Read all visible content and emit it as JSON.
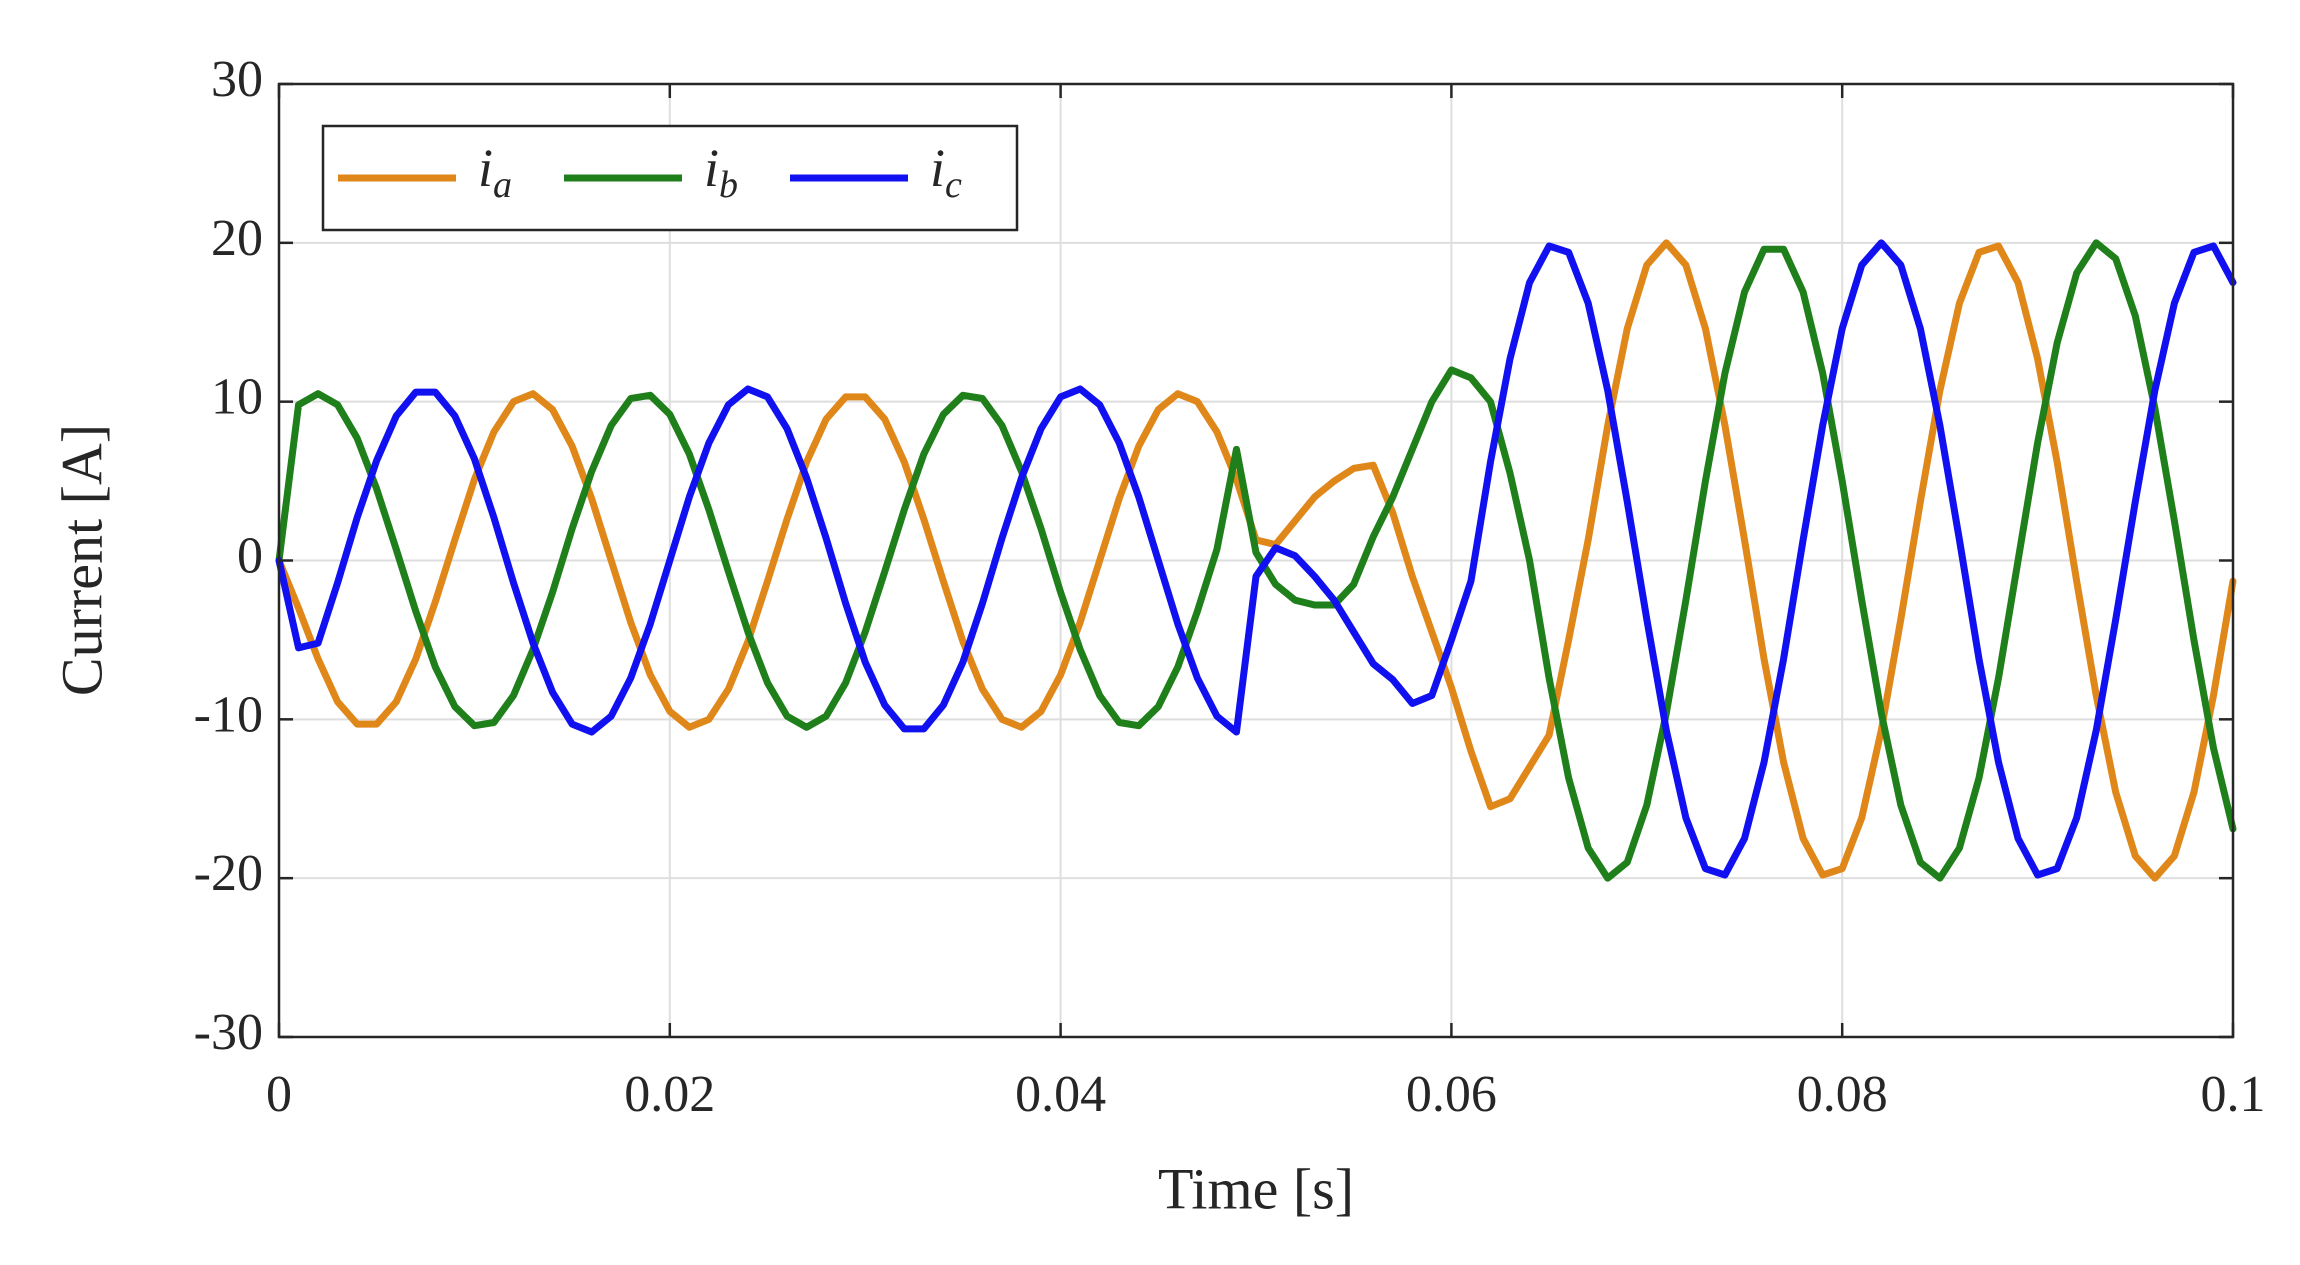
{
  "chart_data": {
    "type": "line",
    "xlabel": "Time [s]",
    "ylabel": "Current [A]",
    "xlim": [
      0,
      0.1
    ],
    "ylim": [
      -30,
      30
    ],
    "xticks": [
      0,
      0.02,
      0.04,
      0.06,
      0.08,
      0.1
    ],
    "yticks": [
      -30,
      -20,
      -10,
      0,
      10,
      20,
      30
    ],
    "grid": true,
    "legend": "upper left",
    "legend_orientation": "horizontal",
    "x": [
      0,
      0.001,
      0.002,
      0.003,
      0.004,
      0.005,
      0.006,
      0.007,
      0.008,
      0.009,
      0.01,
      0.011,
      0.012,
      0.013,
      0.014,
      0.015,
      0.016,
      0.017,
      0.018,
      0.019,
      0.02,
      0.021,
      0.022,
      0.023,
      0.024,
      0.025,
      0.026,
      0.027,
      0.028,
      0.029,
      0.03,
      0.031,
      0.032,
      0.033,
      0.034,
      0.035,
      0.036,
      0.037,
      0.038,
      0.039,
      0.04,
      0.041,
      0.042,
      0.043,
      0.044,
      0.045,
      0.046,
      0.047,
      0.048,
      0.049,
      0.05,
      0.051,
      0.052,
      0.053,
      0.054,
      0.055,
      0.056,
      0.057,
      0.058,
      0.059,
      0.06,
      0.061,
      0.062,
      0.063,
      0.064,
      0.065,
      0.066,
      0.067,
      0.068,
      0.069,
      0.07,
      0.071,
      0.072,
      0.073,
      0.074,
      0.075,
      0.076,
      0.077,
      0.078,
      0.079,
      0.08,
      0.081,
      0.082,
      0.083,
      0.084,
      0.085,
      0.086,
      0.087,
      0.088,
      0.089,
      0.09,
      0.091,
      0.092,
      0.093,
      0.094,
      0.095,
      0.096,
      0.097,
      0.098,
      0.099,
      0.1
    ],
    "series": [
      {
        "name": "ia",
        "color": "#e0871a",
        "values": [
          0,
          -3,
          -6.2,
          -8.9,
          -10.3,
          -10.3,
          -8.9,
          -6.2,
          -2.6,
          1.3,
          5.1,
          8.1,
          10.0,
          10.5,
          9.5,
          7.2,
          3.9,
          0,
          -3.9,
          -7.2,
          -9.5,
          -10.5,
          -10.0,
          -8.1,
          -5.1,
          -1.3,
          2.6,
          6.2,
          8.9,
          10.3,
          10.3,
          8.9,
          6.2,
          2.6,
          -1.3,
          -5.1,
          -8.1,
          -10.0,
          -10.5,
          -9.5,
          -7.2,
          -3.9,
          0,
          3.9,
          7.2,
          9.5,
          10.5,
          10.0,
          8.1,
          5.1,
          1.3,
          1,
          2.5,
          4,
          5,
          5.8,
          6,
          3,
          -1,
          -4.5,
          -8,
          -12,
          -15.5,
          -15,
          -13,
          -11,
          -5,
          1.3,
          8.5,
          14.6,
          18.6,
          20,
          18.6,
          14.6,
          8.5,
          1.3,
          -6.2,
          -12.7,
          -17.5,
          -19.8,
          -19.4,
          -16.2,
          -10.7,
          -3.7,
          3.7,
          10.7,
          16.2,
          19.4,
          19.8,
          17.5,
          12.7,
          6.2,
          -1.3,
          -8.5,
          -14.6,
          -18.6,
          -20,
          -18.6,
          -14.6,
          -8.5,
          -1.3
        ]
      },
      {
        "name": "ib",
        "color": "#1f7f1a",
        "values": [
          0,
          9.8,
          10.5,
          9.8,
          7.7,
          4.5,
          0.7,
          -3.2,
          -6.7,
          -9.2,
          -10.4,
          -10.2,
          -8.5,
          -5.6,
          -2.0,
          2.0,
          5.6,
          8.5,
          10.2,
          10.4,
          9.2,
          6.7,
          3.2,
          -0.7,
          -4.5,
          -7.7,
          -9.8,
          -10.5,
          -9.8,
          -7.7,
          -4.5,
          -0.7,
          3.2,
          6.7,
          9.2,
          10.4,
          10.2,
          8.5,
          5.6,
          2.0,
          -2.0,
          -5.6,
          -8.5,
          -10.2,
          -10.4,
          -9.2,
          -6.7,
          -3.2,
          0.7,
          7,
          0.5,
          -1.5,
          -2.5,
          -2.8,
          -2.8,
          -1.5,
          1.5,
          4,
          7,
          10,
          12,
          11.5,
          10,
          5.5,
          0,
          -7.4,
          -13.7,
          -18.1,
          -20,
          -19.0,
          -15.4,
          -9.6,
          -2.5,
          5.0,
          11.8,
          16.9,
          19.6,
          19.6,
          16.9,
          11.8,
          5.0,
          -2.5,
          -9.6,
          -15.4,
          -19.0,
          -20,
          -18.1,
          -13.7,
          -7.4,
          0,
          7.4,
          13.7,
          18.1,
          20,
          19.0,
          15.4,
          9.6,
          2.5,
          -5.0,
          -11.8,
          -16.9
        ]
      },
      {
        "name": "ic",
        "color": "#1010f0",
        "values": [
          0,
          -5.5,
          -5.2,
          -1.4,
          2.7,
          6.3,
          9.1,
          10.6,
          10.6,
          9.1,
          6.4,
          2.7,
          -1.4,
          -5.2,
          -8.3,
          -10.3,
          -10.8,
          -9.8,
          -7.4,
          -4.0,
          0,
          4.0,
          7.4,
          9.8,
          10.8,
          10.3,
          8.3,
          5.2,
          1.4,
          -2.7,
          -6.4,
          -9.1,
          -10.6,
          -10.6,
          -9.1,
          -6.4,
          -2.7,
          1.4,
          5.2,
          8.3,
          10.3,
          10.8,
          9.8,
          7.4,
          4.0,
          0,
          -4.0,
          -7.4,
          -9.8,
          -10.8,
          -1,
          0.8,
          0.3,
          -1,
          -2.5,
          -4.5,
          -6.5,
          -7.5,
          -9,
          -8.5,
          -5,
          -1.3,
          6.2,
          12.7,
          17.5,
          19.8,
          19.4,
          16.2,
          10.7,
          3.7,
          -3.7,
          -10.7,
          -16.2,
          -19.4,
          -19.8,
          -17.5,
          -12.7,
          -6.2,
          1.3,
          8.5,
          14.6,
          18.6,
          20,
          18.6,
          14.6,
          8.5,
          1.3,
          -6.2,
          -12.7,
          -17.5,
          -19.8,
          -19.4,
          -16.2,
          -10.7,
          -3.7,
          3.7,
          10.7,
          16.2,
          19.4,
          19.8,
          17.5
        ]
      }
    ]
  }
}
